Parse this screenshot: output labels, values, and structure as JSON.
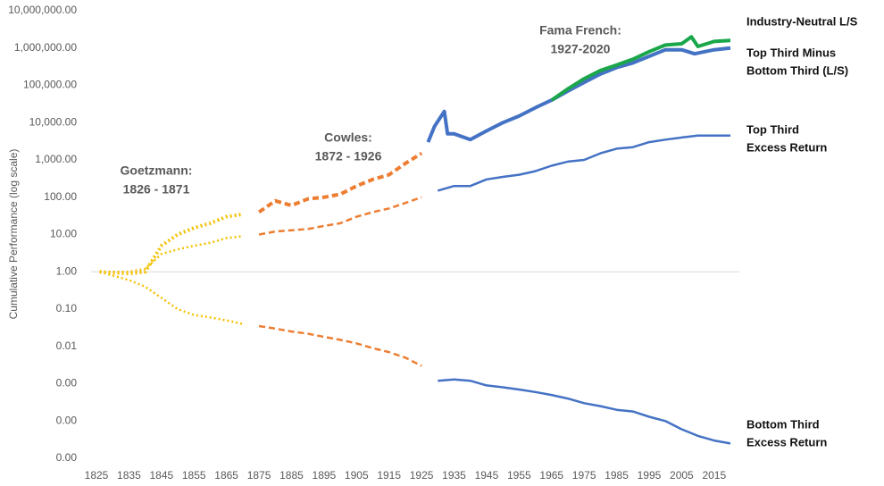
{
  "chart_data": {
    "type": "line",
    "ylabel": "Cumulative Performance (log scale)",
    "log_scale": true,
    "xlim": [
      1825,
      2020
    ],
    "xticks": [
      1825,
      1835,
      1845,
      1855,
      1865,
      1875,
      1885,
      1895,
      1905,
      1915,
      1925,
      1935,
      1945,
      1955,
      1965,
      1975,
      1985,
      1995,
      2005,
      2015
    ],
    "ylim": [
      1e-05,
      10000000
    ],
    "yticks": [
      {
        "value": 10000000,
        "label": "10,000,000.00"
      },
      {
        "value": 1000000,
        "label": "1,000,000.00"
      },
      {
        "value": 100000,
        "label": "100,000.00"
      },
      {
        "value": 10000,
        "label": "10,000.00"
      },
      {
        "value": 1000,
        "label": "1,000.00"
      },
      {
        "value": 100,
        "label": "100.00"
      },
      {
        "value": 10,
        "label": "10.00"
      },
      {
        "value": 1,
        "label": "1.00"
      },
      {
        "value": 0.1,
        "label": "0.10"
      },
      {
        "value": 0.01,
        "label": "0.01"
      },
      {
        "value": 0.001,
        "label": "0.00"
      },
      {
        "value": 0.0001,
        "label": "0.00"
      },
      {
        "value": 1e-05,
        "label": "0.00"
      }
    ],
    "reference_line": 1,
    "eras": [
      {
        "label_lines": [
          "Goetzmann:",
          "1826 - 1871"
        ],
        "start": 1826,
        "end": 1871,
        "color": "#f5c000",
        "style": "dotted"
      },
      {
        "label_lines": [
          "Cowles:",
          "1872 - 1926"
        ],
        "start": 1872,
        "end": 1926,
        "color": "#ed7d31",
        "style": "dashed"
      },
      {
        "label_lines": [
          "Fama French:",
          "1927-2020"
        ],
        "start": 1927,
        "end": 2020,
        "color": "#4472c4",
        "style": "solid"
      }
    ],
    "series": [
      {
        "label_lines": [
          "Top Third Minus",
          "Bottom Third (L/S)"
        ],
        "width": 4,
        "x": [
          1826,
          1835,
          1840,
          1845,
          1850,
          1855,
          1860,
          1865,
          1870,
          1875,
          1880,
          1885,
          1890,
          1895,
          1900,
          1905,
          1910,
          1915,
          1920,
          1925,
          1927,
          1929,
          1932,
          1933,
          1935,
          1940,
          1945,
          1950,
          1955,
          1960,
          1965,
          1970,
          1975,
          1980,
          1985,
          1990,
          1995,
          2000,
          2005,
          2009,
          2015,
          2020
        ],
        "values": [
          1,
          0.9,
          1,
          5,
          10,
          15,
          20,
          30,
          35,
          40,
          80,
          60,
          90,
          100,
          120,
          200,
          300,
          400,
          800,
          1500,
          3000,
          8000,
          20000,
          5000,
          5000,
          3500,
          6000,
          10000,
          15000,
          25000,
          40000,
          70000,
          120000,
          200000,
          300000,
          400000,
          600000,
          900000,
          900000,
          700000,
          900000,
          1000000
        ]
      },
      {
        "label_lines": [
          "Industry-Neutral L/S"
        ],
        "width": 4,
        "color": "#1aa64a",
        "x": [
          1965,
          1970,
          1975,
          1980,
          1985,
          1990,
          1995,
          2000,
          2005,
          2008,
          2010,
          2015,
          2020
        ],
        "values": [
          40000,
          80000,
          150000,
          250000,
          350000,
          500000,
          800000,
          1200000,
          1300000,
          2000000,
          1100000,
          1500000,
          1600000
        ]
      },
      {
        "label_lines": [
          "Top Third",
          "Excess Return"
        ],
        "width": 2.5,
        "x": [
          1826,
          1835,
          1840,
          1845,
          1850,
          1855,
          1860,
          1865,
          1870,
          1875,
          1880,
          1885,
          1890,
          1895,
          1900,
          1905,
          1910,
          1915,
          1920,
          1925,
          1930,
          1935,
          1940,
          1945,
          1950,
          1955,
          1960,
          1965,
          1970,
          1975,
          1980,
          1985,
          1990,
          1995,
          2000,
          2005,
          2010,
          2015,
          2020
        ],
        "values": [
          1,
          1,
          1.2,
          3,
          4,
          5,
          6,
          8,
          9,
          10,
          12,
          13,
          14,
          17,
          20,
          30,
          40,
          50,
          70,
          100,
          150,
          200,
          200,
          300,
          350,
          400,
          500,
          700,
          900,
          1000,
          1500,
          2000,
          2200,
          3000,
          3500,
          4000,
          4500,
          4500,
          4500
        ]
      },
      {
        "label_lines": [
          "Bottom Third",
          "Excess Return"
        ],
        "width": 2.5,
        "x": [
          1826,
          1835,
          1840,
          1845,
          1850,
          1855,
          1860,
          1865,
          1870,
          1875,
          1880,
          1885,
          1890,
          1895,
          1900,
          1905,
          1910,
          1915,
          1920,
          1925,
          1930,
          1935,
          1940,
          1945,
          1950,
          1955,
          1960,
          1965,
          1970,
          1975,
          1980,
          1985,
          1990,
          1995,
          2000,
          2005,
          2010,
          2015,
          2020
        ],
        "values": [
          1,
          0.6,
          0.4,
          0.2,
          0.1,
          0.07,
          0.06,
          0.05,
          0.04,
          0.035,
          0.03,
          0.025,
          0.022,
          0.018,
          0.015,
          0.012,
          0.009,
          0.007,
          0.005,
          0.003,
          0.0012,
          0.0013,
          0.0012,
          0.0009,
          0.0008,
          0.0007,
          0.0006,
          0.0005,
          0.0004,
          0.0003,
          0.00025,
          0.0002,
          0.00018,
          0.00013,
          0.0001,
          6e-05,
          4e-05,
          3e-05,
          2.5e-05
        ]
      }
    ]
  }
}
